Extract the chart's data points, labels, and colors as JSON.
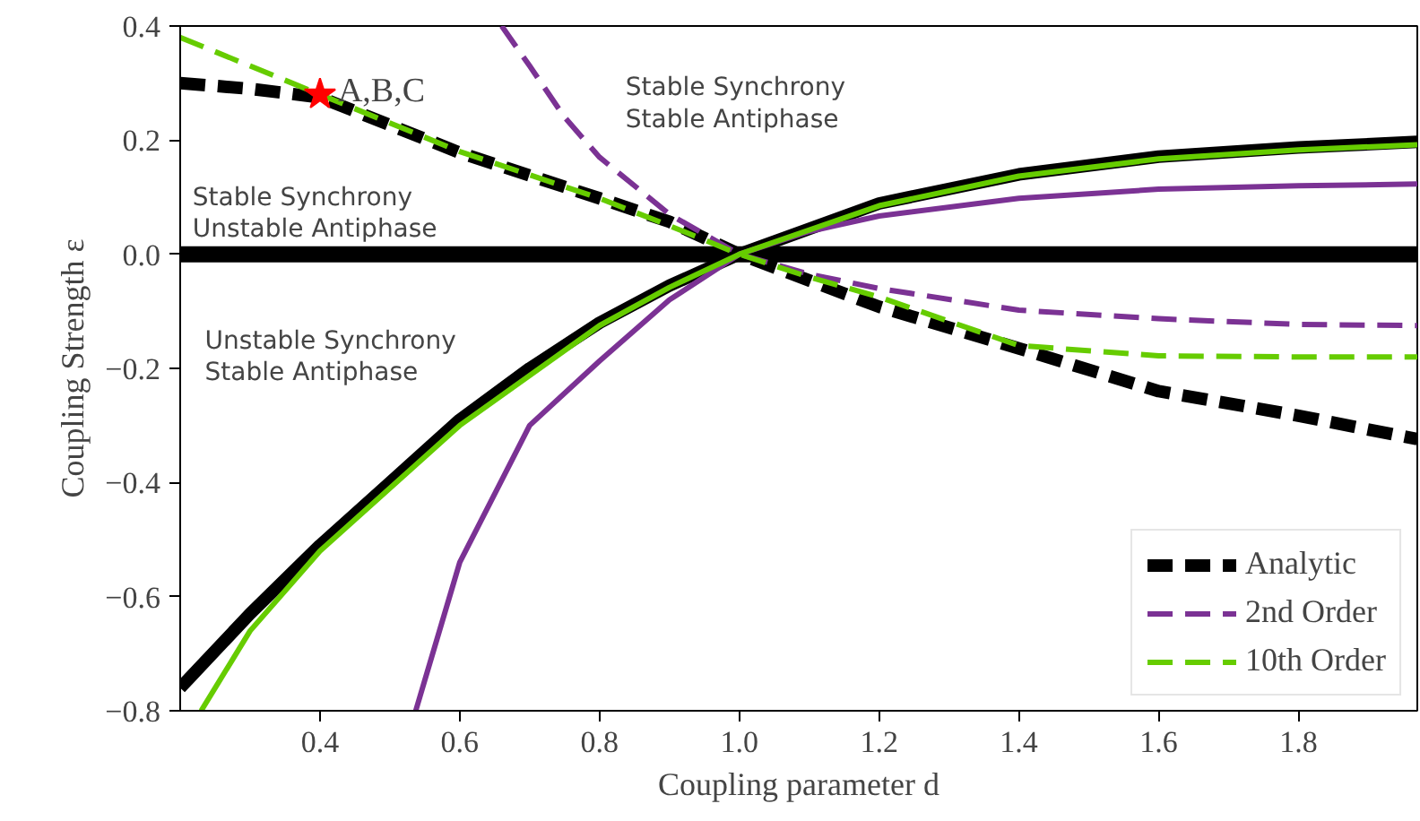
{
  "chart_data": {
    "type": "line",
    "xlabel": "Coupling parameter d",
    "ylabel": "Coupling Strength ε",
    "xlim": [
      0.2,
      1.97
    ],
    "ylim": [
      -0.8,
      0.4
    ],
    "xticks": [
      {
        "value": 0.4,
        "label": "0.4"
      },
      {
        "value": 0.6,
        "label": "0.6"
      },
      {
        "value": 0.8,
        "label": "0.8"
      },
      {
        "value": 1.0,
        "label": "1.0"
      },
      {
        "value": 1.2,
        "label": "1.2"
      },
      {
        "value": 1.4,
        "label": "1.4"
      },
      {
        "value": 1.6,
        "label": "1.6"
      },
      {
        "value": 1.8,
        "label": "1.8"
      }
    ],
    "yticks": [
      {
        "value": -0.8,
        "label": "−0.8"
      },
      {
        "value": -0.6,
        "label": "−0.6"
      },
      {
        "value": -0.4,
        "label": "−0.4"
      },
      {
        "value": -0.2,
        "label": "−0.2"
      },
      {
        "value": 0.0,
        "label": "0.0"
      },
      {
        "value": 0.2,
        "label": "0.2"
      },
      {
        "value": 0.4,
        "label": "0.4"
      }
    ],
    "grid": false,
    "legend": "bottom right",
    "series": [
      {
        "name": "Analytic",
        "color": "#000000",
        "line_style": "dashed",
        "x": [
          0.2,
          0.3,
          0.4,
          0.6,
          0.8,
          0.9,
          1.0,
          1.2,
          1.4,
          1.6,
          1.8,
          1.97
        ],
        "values": [
          0.3,
          0.29,
          0.275,
          0.178,
          0.098,
          0.057,
          0.0,
          -0.092,
          -0.165,
          -0.24,
          -0.283,
          -0.324
        ]
      },
      {
        "color": "#000000",
        "line_style": "solid",
        "x": [
          0.2,
          0.3,
          0.4,
          0.5,
          0.6,
          0.7,
          0.8,
          0.9,
          1.0,
          1.2,
          1.4,
          1.6,
          1.8,
          1.97
        ],
        "values": [
          -0.76,
          -0.63,
          -0.51,
          -0.4,
          -0.29,
          -0.2,
          -0.12,
          -0.055,
          0.0,
          0.089,
          0.14,
          0.171,
          0.187,
          0.197
        ]
      },
      {
        "color": "#000000",
        "line_style": "solid",
        "x": [
          0.2,
          1.97
        ],
        "values": [
          0.0,
          0.0
        ]
      },
      {
        "name": "2nd Order",
        "color": "#7b3294",
        "line_style": "dashed",
        "x": [
          0.66,
          0.7,
          0.75,
          0.8,
          0.9,
          1.0,
          1.1,
          1.2,
          1.4,
          1.6,
          1.8,
          1.97
        ],
        "values": [
          0.4,
          0.33,
          0.24,
          0.17,
          0.07,
          0.0,
          -0.035,
          -0.06,
          -0.098,
          -0.113,
          -0.123,
          -0.125
        ]
      },
      {
        "color": "#7b3294",
        "line_style": "solid",
        "x": [
          0.537,
          0.6,
          0.7,
          0.8,
          0.9,
          1.0,
          1.1,
          1.2,
          1.4,
          1.6,
          1.8,
          1.97
        ],
        "values": [
          -0.8,
          -0.54,
          -0.3,
          -0.187,
          -0.08,
          0.0,
          0.04,
          0.067,
          0.098,
          0.114,
          0.12,
          0.123
        ]
      },
      {
        "name": "10th Order",
        "color": "#66cc00",
        "line_style": "dashed",
        "x": [
          0.2,
          0.3,
          0.4,
          0.6,
          0.8,
          0.9,
          1.0,
          1.1,
          1.2,
          1.4,
          1.6,
          1.8,
          1.97
        ],
        "values": [
          0.38,
          0.33,
          0.28,
          0.18,
          0.098,
          0.05,
          0.0,
          -0.04,
          -0.075,
          -0.16,
          -0.178,
          -0.18,
          -0.18
        ]
      },
      {
        "color": "#66cc00",
        "line_style": "solid",
        "x": [
          0.23,
          0.3,
          0.4,
          0.6,
          0.8,
          0.9,
          1.0,
          1.2,
          1.4,
          1.6,
          1.8,
          1.97
        ],
        "values": [
          -0.8,
          -0.66,
          -0.52,
          -0.3,
          -0.125,
          -0.058,
          0.0,
          0.085,
          0.137,
          0.167,
          0.183,
          0.192
        ]
      },
      {
        "type": "scatter",
        "marker": "star",
        "color": "#ff0000",
        "x": [
          0.4
        ],
        "values": [
          0.28
        ]
      }
    ],
    "annotations": [
      {
        "text": "A,B,C",
        "x": 0.4,
        "y": 0.28
      },
      "Stable Synchrony\nStable Antiphase",
      "Stable Synchrony\nUnstable Antiphase",
      "Unstable Synchrony\nStable Antiphase"
    ]
  }
}
